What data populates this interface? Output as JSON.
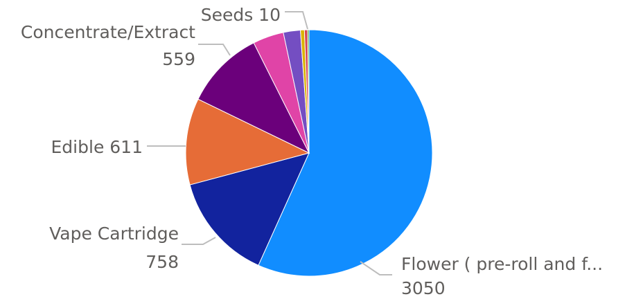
{
  "chart_data": {
    "type": "pie",
    "slices": [
      {
        "label": "Flower ( pre-roll and f...",
        "value": 3050,
        "display_value": "3050",
        "color": "#118DFF",
        "shows_label": true
      },
      {
        "label": "Vape Cartridge",
        "value": 758,
        "display_value": "758",
        "color": "#12239E",
        "shows_label": true
      },
      {
        "label": "Edible",
        "value": 611,
        "display_value": "611",
        "color": "#E66C37",
        "shows_label": true
      },
      {
        "label": "Concentrate/Extract",
        "value": 559,
        "display_value": "559",
        "color": "#6B007B",
        "shows_label": true
      },
      {
        "label": "",
        "value": 218,
        "display_value": "",
        "color": "#E044A7",
        "shows_label": false
      },
      {
        "label": "",
        "value": 120,
        "display_value": "",
        "color": "#744EC2",
        "shows_label": false
      },
      {
        "label": "",
        "value": 28,
        "display_value": "",
        "color": "#D9B300",
        "shows_label": false
      },
      {
        "label": "",
        "value": 22,
        "display_value": "",
        "color": "#D64550",
        "shows_label": false
      },
      {
        "label": "Seeds",
        "value": 10,
        "display_value": "10",
        "color": "#2CA02C",
        "shows_label": true
      }
    ],
    "label_color": "#605e5c",
    "leader_color": "#bdbdbd",
    "legend": "none"
  }
}
